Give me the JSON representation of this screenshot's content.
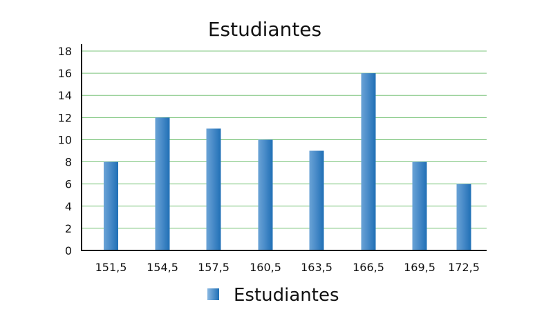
{
  "chart_data": {
    "type": "bar",
    "title": "Estudiantes",
    "xlabel": "",
    "ylabel": "",
    "categories": [
      "151,5",
      "154,5",
      "157,5",
      "160,5",
      "163,5",
      "166,5",
      "169,5",
      "172,5"
    ],
    "series": [
      {
        "name": "Estudiantes",
        "values": [
          8,
          12,
          11,
          10,
          9,
          16,
          8,
          6
        ]
      }
    ],
    "ylim": [
      0,
      18
    ],
    "yticks": [
      0,
      2,
      4,
      6,
      8,
      10,
      12,
      14,
      16,
      18
    ],
    "grid": true,
    "legend_position": "bottom",
    "colors": {
      "bar_dark": "#1f6fb5",
      "bar_light": "#6aa3d6",
      "grid": "#7cc47c",
      "axis": "#111111"
    }
  }
}
